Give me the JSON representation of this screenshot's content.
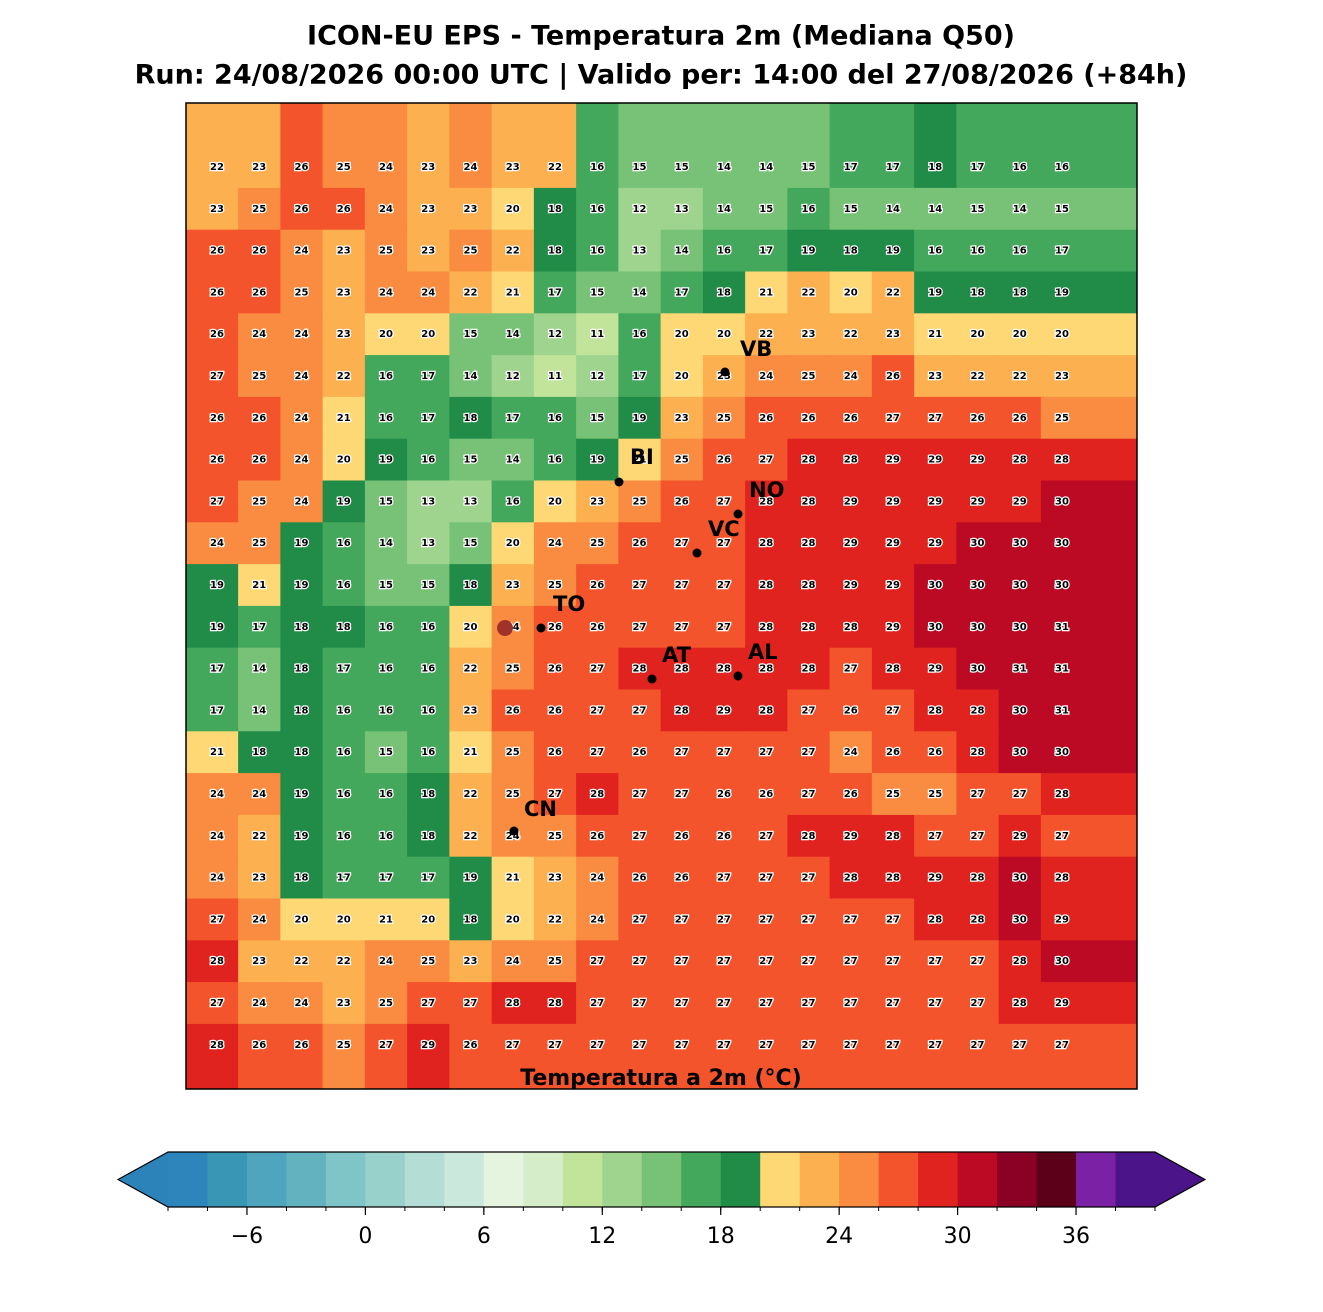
{
  "chart_data": {
    "type": "gridmap",
    "title": "ICON-EU EPS - Temperatura 2m (Mediana Q50)",
    "subtitle": "Run: 24/08/2026 00:00 UTC | Valido per: 14:00 del 27/08/2026 (+84h)",
    "values": [
      [
        22,
        23,
        26,
        25,
        24,
        23,
        24,
        23,
        22,
        16,
        15,
        15,
        14,
        14,
        15,
        17,
        17,
        18,
        17,
        16,
        16
      ],
      [
        23,
        25,
        26,
        26,
        24,
        23,
        23,
        20,
        18,
        16,
        12,
        13,
        14,
        15,
        16,
        15,
        14,
        14,
        15,
        14,
        15
      ],
      [
        26,
        26,
        24,
        23,
        25,
        23,
        25,
        22,
        18,
        16,
        13,
        14,
        16,
        17,
        19,
        18,
        19,
        16,
        16,
        16,
        17
      ],
      [
        26,
        26,
        25,
        23,
        24,
        24,
        22,
        21,
        17,
        15,
        14,
        17,
        18,
        21,
        22,
        20,
        22,
        19,
        18,
        18,
        19
      ],
      [
        26,
        24,
        24,
        23,
        20,
        20,
        15,
        14,
        12,
        11,
        16,
        20,
        20,
        22,
        23,
        22,
        23,
        21,
        20,
        20,
        20
      ],
      [
        27,
        25,
        24,
        22,
        16,
        17,
        14,
        12,
        11,
        12,
        17,
        20,
        23,
        24,
        25,
        24,
        26,
        23,
        22,
        22,
        23
      ],
      [
        26,
        26,
        24,
        21,
        16,
        17,
        18,
        17,
        16,
        15,
        19,
        23,
        25,
        26,
        26,
        26,
        27,
        27,
        26,
        26,
        25
      ],
      [
        26,
        26,
        24,
        20,
        19,
        16,
        15,
        14,
        16,
        19,
        21,
        25,
        26,
        27,
        28,
        28,
        29,
        29,
        29,
        28,
        28
      ],
      [
        27,
        25,
        24,
        19,
        15,
        13,
        13,
        16,
        20,
        23,
        25,
        26,
        27,
        28,
        28,
        29,
        29,
        29,
        29,
        29,
        30
      ],
      [
        24,
        25,
        19,
        16,
        14,
        13,
        15,
        20,
        24,
        25,
        26,
        27,
        27,
        28,
        28,
        29,
        29,
        29,
        30,
        30,
        30
      ],
      [
        19,
        21,
        19,
        16,
        15,
        15,
        18,
        23,
        25,
        26,
        27,
        27,
        27,
        28,
        28,
        29,
        29,
        30,
        30,
        30,
        30
      ],
      [
        19,
        17,
        18,
        18,
        16,
        16,
        20,
        24,
        26,
        26,
        27,
        27,
        27,
        28,
        28,
        28,
        29,
        30,
        30,
        30,
        31
      ],
      [
        17,
        14,
        18,
        17,
        16,
        16,
        22,
        25,
        26,
        27,
        28,
        28,
        28,
        28,
        28,
        27,
        28,
        29,
        30,
        31,
        31
      ],
      [
        17,
        14,
        18,
        16,
        16,
        16,
        23,
        26,
        26,
        27,
        27,
        28,
        29,
        28,
        27,
        26,
        27,
        28,
        28,
        30,
        31
      ],
      [
        21,
        18,
        18,
        16,
        15,
        16,
        21,
        25,
        26,
        27,
        26,
        27,
        27,
        27,
        27,
        24,
        26,
        26,
        28,
        30,
        30
      ],
      [
        24,
        24,
        19,
        16,
        16,
        18,
        22,
        25,
        27,
        28,
        27,
        27,
        26,
        26,
        27,
        26,
        25,
        25,
        27,
        27,
        28
      ],
      [
        24,
        22,
        19,
        16,
        16,
        18,
        22,
        24,
        25,
        26,
        27,
        26,
        26,
        27,
        28,
        29,
        28,
        27,
        27,
        29,
        27
      ],
      [
        24,
        23,
        18,
        17,
        17,
        17,
        19,
        21,
        23,
        24,
        26,
        26,
        27,
        27,
        27,
        28,
        28,
        29,
        28,
        30,
        28
      ],
      [
        27,
        24,
        20,
        20,
        21,
        20,
        18,
        20,
        22,
        24,
        27,
        27,
        27,
        27,
        27,
        27,
        27,
        28,
        28,
        30,
        29
      ],
      [
        28,
        23,
        22,
        22,
        24,
        25,
        23,
        24,
        25,
        27,
        27,
        27,
        27,
        27,
        27,
        27,
        27,
        27,
        27,
        28,
        30
      ],
      [
        27,
        24,
        24,
        23,
        25,
        27,
        27,
        28,
        28,
        27,
        27,
        27,
        27,
        27,
        27,
        27,
        27,
        27,
        27,
        28,
        29
      ],
      [
        28,
        26,
        26,
        25,
        27,
        29,
        26,
        27,
        27,
        27,
        27,
        27,
        27,
        27,
        27,
        27,
        27,
        27,
        27,
        27,
        27
      ]
    ],
    "cities": [
      "VB",
      "BI",
      "NO",
      "VC",
      "TO",
      "AT",
      "AL",
      "CN"
    ],
    "colorbar": {
      "label": "Temperatura a 2m (°C)",
      "lim": [
        -10,
        40
      ],
      "ticks": [
        {
          "value": -6,
          "label": "−6"
        },
        0,
        6,
        12,
        18,
        24,
        30,
        36
      ],
      "colors": [
        "#2e85bb",
        "#3a96b5",
        "#4fa5bd",
        "#62b2c0",
        "#7fc4c6",
        "#98d0cc",
        "#b4ddd5",
        "#cbe8dd",
        "#e5f4df",
        "#d6edc9",
        "#c1e39a",
        "#9fd48e",
        "#78c278",
        "#44a85c",
        "#218b48",
        "#fdd874",
        "#fcb050",
        "#f98c40",
        "#f4542c",
        "#e0231f",
        "#bc0a25",
        "#8b0025",
        "#5c0019",
        "#7b21a6",
        "#4b1488"
      ],
      "under": "#2b83ba",
      "over": "#4b1488"
    }
  }
}
